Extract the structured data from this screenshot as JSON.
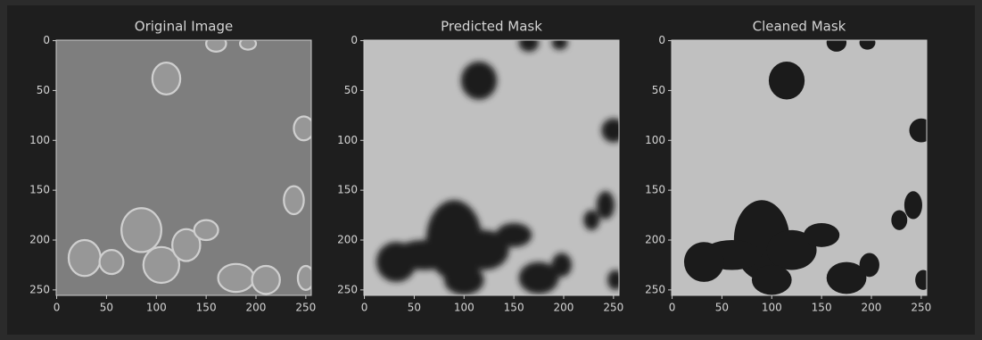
{
  "chart_data": [
    {
      "type": "image",
      "title": "Original Image",
      "xlim": [
        -0.5,
        255.5
      ],
      "ylim": [
        255.5,
        -0.5
      ],
      "xticks": [
        0,
        50,
        100,
        150,
        200,
        250
      ],
      "yticks": [
        0,
        50,
        100,
        150,
        200,
        250
      ]
    },
    {
      "type": "image",
      "title": "Predicted Mask",
      "xlim": [
        -0.5,
        255.5
      ],
      "ylim": [
        255.5,
        -0.5
      ],
      "xticks": [
        0,
        50,
        100,
        150,
        200,
        250
      ],
      "yticks": [
        0,
        50,
        100,
        150,
        200,
        250
      ]
    },
    {
      "type": "image",
      "title": "Cleaned Mask",
      "xlim": [
        -0.5,
        255.5
      ],
      "ylim": [
        255.5,
        -0.5
      ],
      "xticks": [
        0,
        50,
        100,
        150,
        200,
        250
      ],
      "yticks": [
        0,
        50,
        100,
        150,
        200,
        250
      ]
    }
  ]
}
